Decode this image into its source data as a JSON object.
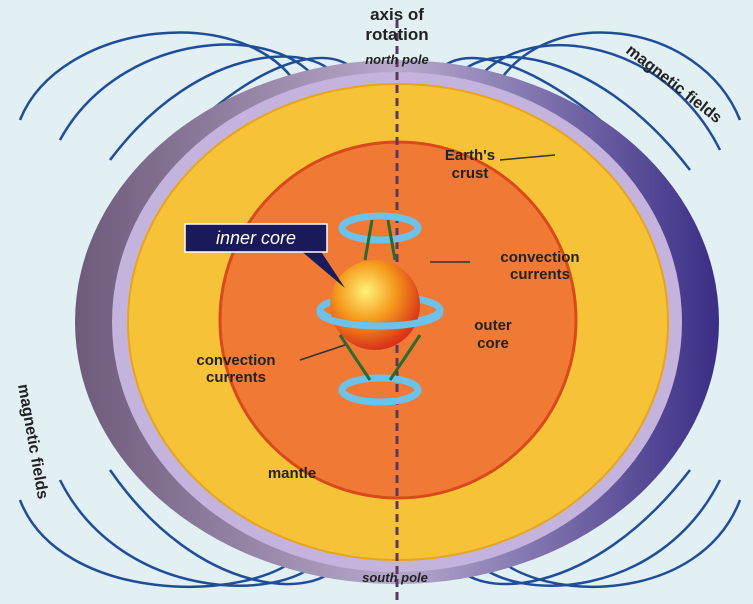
{
  "labels": {
    "axis_of_rotation": [
      "axis of",
      "rotation"
    ],
    "north_pole": "north pole",
    "south_pole": "south pole",
    "magnetic_fields_top": "magnetic fields",
    "magnetic_fields_bottom": "magnetic fields",
    "earths_crust": [
      "Earth's",
      "crust"
    ],
    "inner_core": "inner core",
    "convection_currents_right": [
      "convection",
      "currents"
    ],
    "convection_currents_left": [
      "convection",
      "currents"
    ],
    "outer_core": [
      "outer",
      "core"
    ],
    "mantle": "mantle"
  }
}
